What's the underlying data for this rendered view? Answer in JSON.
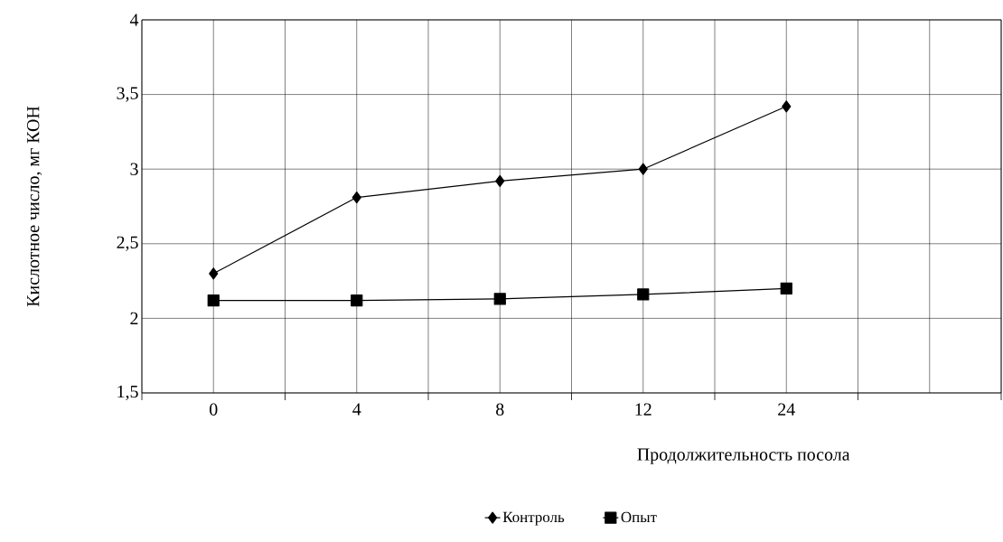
{
  "chart_data": {
    "type": "line",
    "xlabel": "Продолжительность посола",
    "ylabel": "Кислотное число, мг КОН",
    "categories": [
      "0",
      "4",
      "8",
      "12",
      "24",
      null
    ],
    "series": [
      {
        "name": "Контроль",
        "color": "#000000",
        "marker": "diamond",
        "values": [
          2.3,
          2.81,
          2.92,
          3.0,
          3.42,
          null
        ]
      },
      {
        "name": "Опыт",
        "color": "#000000",
        "marker": "square",
        "values": [
          2.12,
          2.12,
          2.13,
          2.16,
          2.2,
          null
        ]
      }
    ],
    "ylim": [
      1.5,
      4
    ],
    "yticks": [
      {
        "value": 1.5,
        "label": "1,5"
      },
      2,
      {
        "value": 2.5,
        "label": "2,5"
      },
      3,
      {
        "value": 3.5,
        "label": "3,5"
      },
      4
    ],
    "grid": true,
    "legend": "bottom",
    "line_style": "solid"
  }
}
